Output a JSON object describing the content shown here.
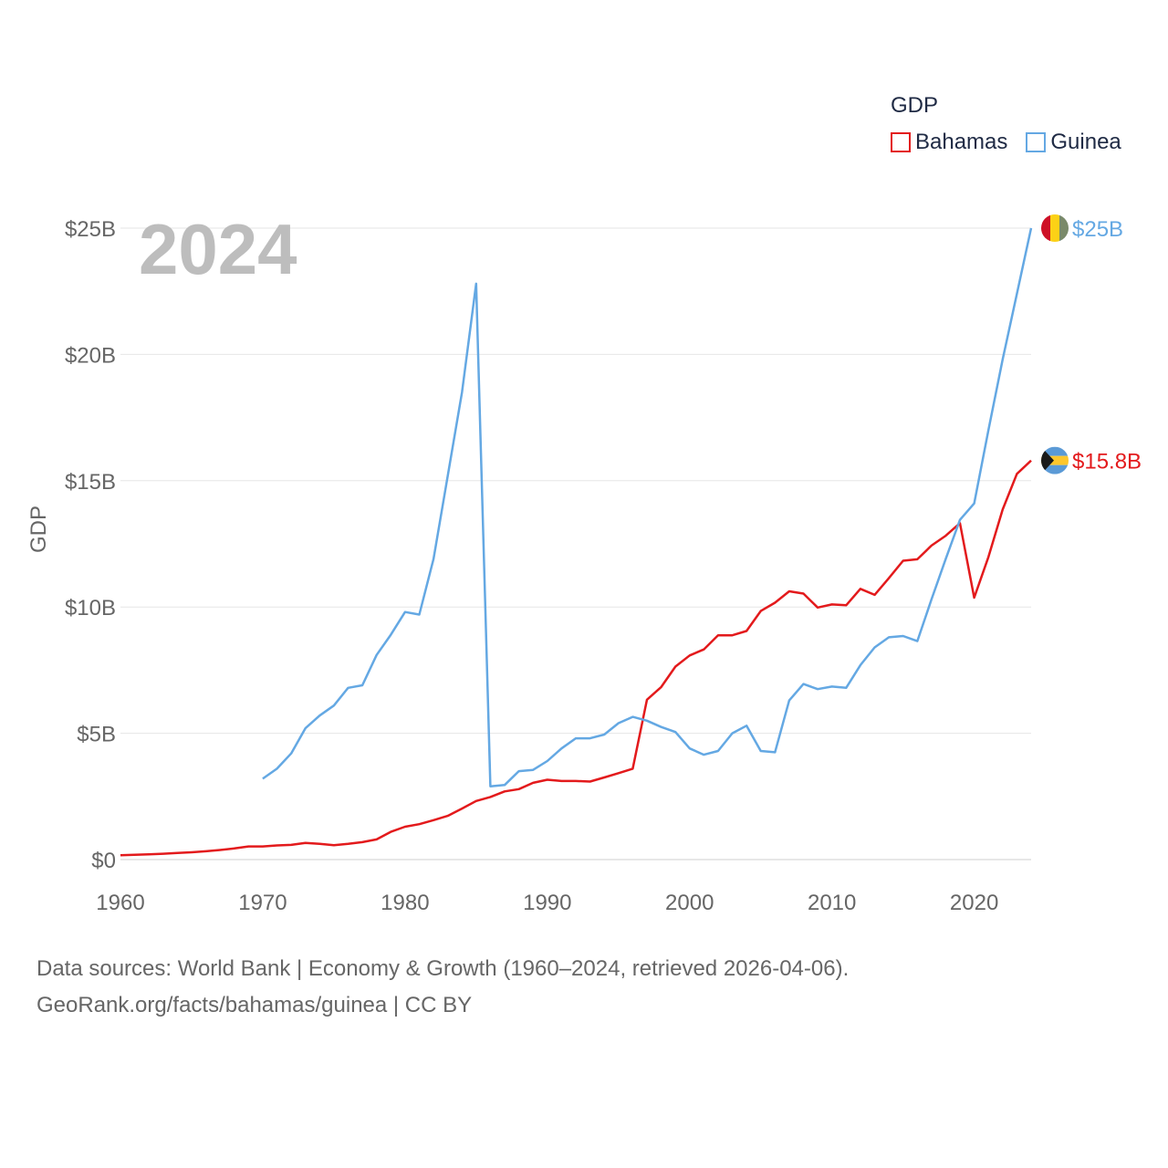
{
  "legend": {
    "title": "GDP",
    "items": [
      {
        "label": "Bahamas",
        "color": "#e31a1c"
      },
      {
        "label": "Guinea",
        "color": "#64a8e3"
      }
    ]
  },
  "sources": {
    "line1": "Data sources: World Bank | Economy & Growth (1960–2024, retrieved 2026-04-06).",
    "line2": "GeoRank.org/facts/bahamas/guinea | CC BY"
  },
  "chart_data": {
    "type": "line",
    "title": "GDP",
    "year_label": "2024",
    "xlabel": "",
    "ylabel": "GDP",
    "xlim": [
      1960,
      2024
    ],
    "ylim": [
      0,
      25
    ],
    "x_ticks": [
      "1960",
      "1970",
      "1980",
      "1990",
      "2000",
      "2010",
      "2020"
    ],
    "y_ticks": [
      {
        "value": 0,
        "label": "$0"
      },
      {
        "value": 5,
        "label": "$5B"
      },
      {
        "value": 10,
        "label": "$10B"
      },
      {
        "value": 15,
        "label": "$15B"
      },
      {
        "value": 20,
        "label": "$20B"
      },
      {
        "value": 25,
        "label": "$25B"
      }
    ],
    "grid": true,
    "series": [
      {
        "name": "Bahamas",
        "color": "#e31a1c",
        "end_label": "$15.8B",
        "x_start": 1960,
        "values": [
          0.17,
          0.19,
          0.21,
          0.23,
          0.26,
          0.29,
          0.33,
          0.38,
          0.44,
          0.52,
          0.52,
          0.56,
          0.58,
          0.66,
          0.62,
          0.57,
          0.62,
          0.69,
          0.8,
          1.1,
          1.3,
          1.4,
          1.56,
          1.73,
          2.02,
          2.32,
          2.48,
          2.7,
          2.79,
          3.04,
          3.16,
          3.11,
          3.11,
          3.09,
          3.25,
          3.42,
          3.6,
          6.33,
          6.83,
          7.64,
          8.08,
          8.32,
          8.88,
          8.88,
          9.05,
          9.84,
          10.17,
          10.62,
          10.53,
          9.98,
          10.1,
          10.07,
          10.72,
          10.48,
          11.14,
          11.83,
          11.89,
          12.43,
          12.82,
          13.32,
          10.37,
          11.98,
          13.86,
          15.27,
          15.8
        ]
      },
      {
        "name": "Guinea",
        "color": "#64a8e3",
        "end_label": "$25B",
        "x_start": 1970,
        "values": [
          3.2,
          3.6,
          4.2,
          5.2,
          5.7,
          6.1,
          6.8,
          6.9,
          8.1,
          8.9,
          9.8,
          9.7,
          11.9,
          15.2,
          18.5,
          22.8,
          2.9,
          2.95,
          3.5,
          3.55,
          3.9,
          4.4,
          4.8,
          4.8,
          4.95,
          5.4,
          5.65,
          5.5,
          5.25,
          5.05,
          4.4,
          4.15,
          4.3,
          5.0,
          5.3,
          4.3,
          4.25,
          6.3,
          6.95,
          6.75,
          6.85,
          6.8,
          7.7,
          8.4,
          8.8,
          8.85,
          8.65,
          10.3,
          11.9,
          13.45,
          14.1,
          17.0,
          19.8,
          22.4,
          25.0
        ]
      }
    ]
  }
}
